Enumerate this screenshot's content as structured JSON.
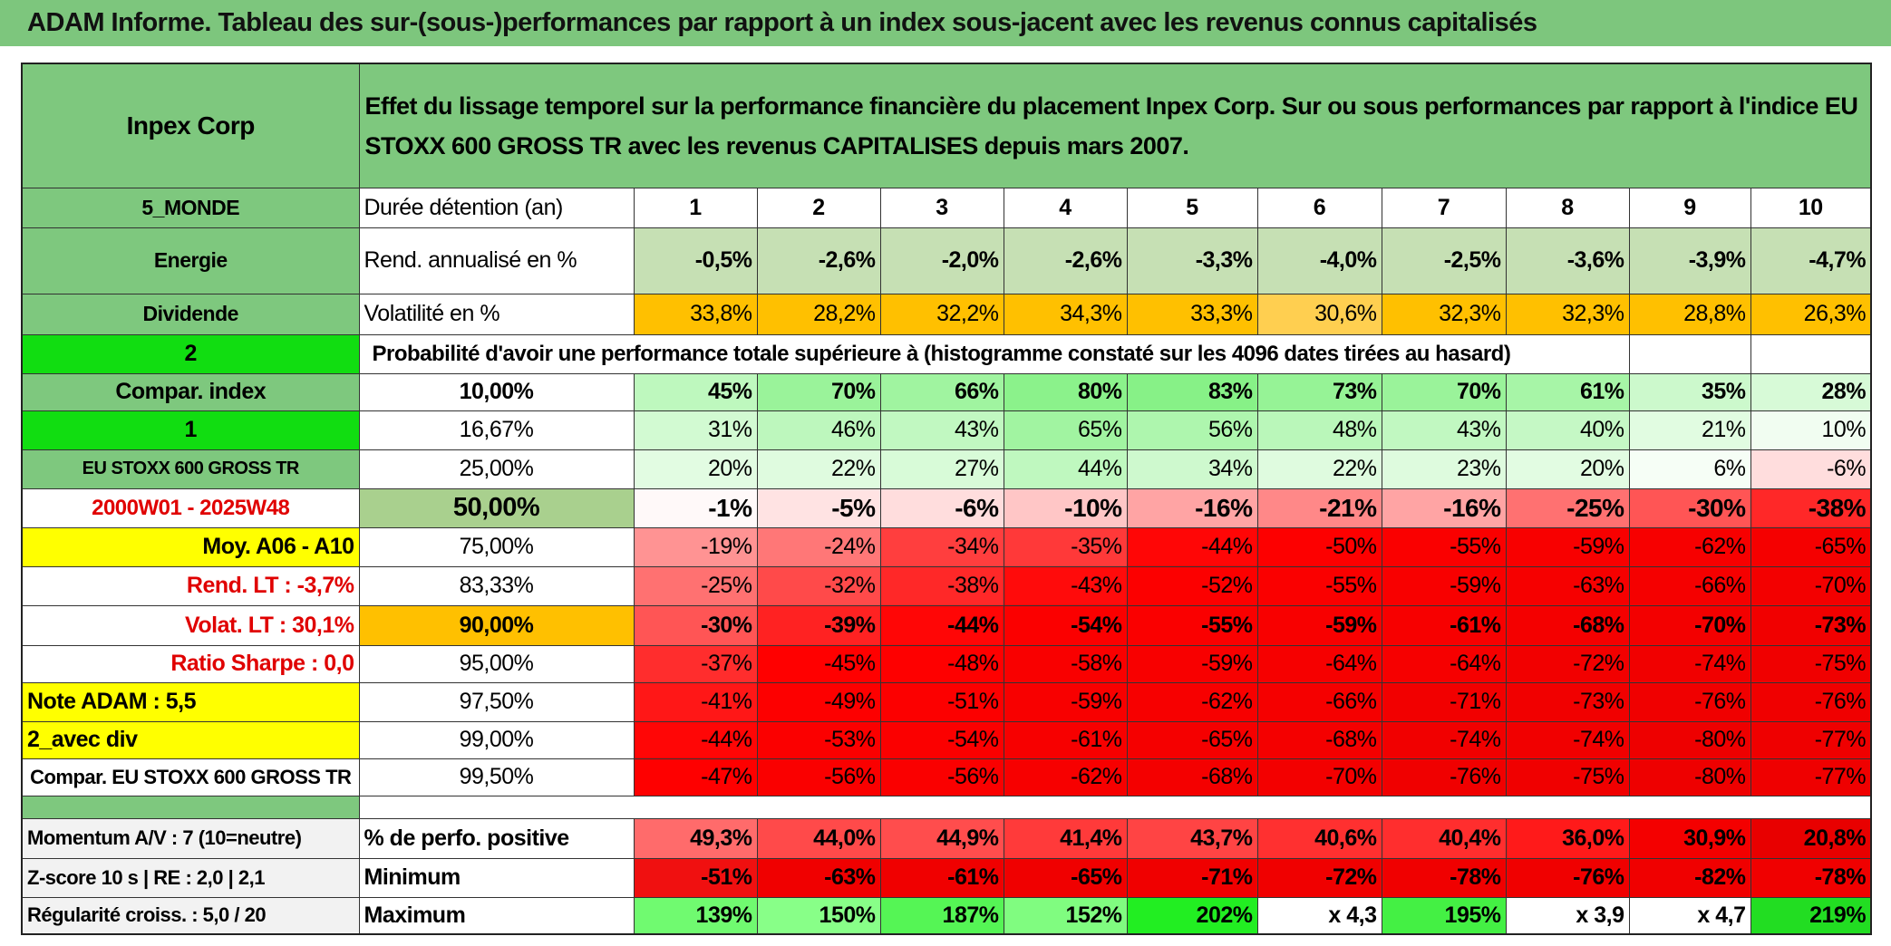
{
  "title": "ADAM Informe. Tableau des sur-(sous-)performances par rapport à un index sous-jacent avec les revenus connus capitalisés",
  "header": {
    "company": "Inpex Corp",
    "description": "Effet du lissage temporel sur la performance financière du placement Inpex Corp. Sur ou sous performances par rapport à l'indice EU STOXX 600 GROSS TR avec les revenus CAPITALISES depuis mars 2007."
  },
  "info_rows": [
    {
      "label": "5_MONDE",
      "name": "Durée détention (an)",
      "values": [
        "1",
        "2",
        "3",
        "4",
        "5",
        "6",
        "7",
        "8",
        "9",
        "10"
      ]
    },
    {
      "label": "Energie",
      "name": "Rend. annualisé en %",
      "values": [
        "-0,5%",
        "-2,6%",
        "-2,0%",
        "-2,6%",
        "-3,3%",
        "-4,0%",
        "-2,5%",
        "-3,6%",
        "-3,9%",
        "-4,7%"
      ]
    },
    {
      "label": "Dividende",
      "name": "Volatilité en %",
      "values": [
        "33,8%",
        "28,2%",
        "32,2%",
        "34,3%",
        "33,3%",
        "30,6%",
        "32,3%",
        "32,3%",
        "28,8%",
        "26,3%"
      ]
    }
  ],
  "probability": {
    "label": "2",
    "caption": "Probabilité d'avoir une performance totale supérieure à (histogramme constaté sur les 4096 dates tirées au hasard)"
  },
  "quantile_rows": [
    {
      "label": "Compar. index",
      "quantile": "10,00%",
      "values": [
        "45%",
        "70%",
        "66%",
        "80%",
        "83%",
        "73%",
        "70%",
        "61%",
        "35%",
        "28%"
      ]
    },
    {
      "label": "1",
      "quantile": "16,67%",
      "values": [
        "31%",
        "46%",
        "43%",
        "65%",
        "56%",
        "48%",
        "43%",
        "40%",
        "21%",
        "10%"
      ]
    },
    {
      "label": "EU STOXX 600 GROSS TR",
      "quantile": "25,00%",
      "values": [
        "20%",
        "22%",
        "27%",
        "44%",
        "34%",
        "22%",
        "23%",
        "20%",
        "6%",
        "-6%"
      ]
    },
    {
      "label": "2000W01 - 2025W48",
      "quantile": "50,00%",
      "values": [
        "-1%",
        "-5%",
        "-6%",
        "-10%",
        "-16%",
        "-21%",
        "-16%",
        "-25%",
        "-30%",
        "-38%"
      ]
    },
    {
      "label": "Moy. A06 - A10",
      "quantile": "75,00%",
      "values": [
        "-19%",
        "-24%",
        "-34%",
        "-35%",
        "-44%",
        "-50%",
        "-55%",
        "-59%",
        "-62%",
        "-65%"
      ]
    },
    {
      "label": "Rend. LT :   -3,7%",
      "quantile": "83,33%",
      "values": [
        "-25%",
        "-32%",
        "-38%",
        "-43%",
        "-52%",
        "-55%",
        "-59%",
        "-63%",
        "-66%",
        "-70%"
      ]
    },
    {
      "label": "Volat. LT :   30,1%",
      "quantile": "90,00%",
      "values": [
        "-30%",
        "-39%",
        "-44%",
        "-54%",
        "-55%",
        "-59%",
        "-61%",
        "-68%",
        "-70%",
        "-73%"
      ]
    },
    {
      "label": "Ratio Sharpe :    0,0",
      "quantile": "95,00%",
      "values": [
        "-37%",
        "-45%",
        "-48%",
        "-58%",
        "-59%",
        "-64%",
        "-64%",
        "-72%",
        "-74%",
        "-75%"
      ]
    },
    {
      "label": "Note ADAM : 5,5",
      "quantile": "97,50%",
      "values": [
        "-41%",
        "-49%",
        "-51%",
        "-59%",
        "-62%",
        "-66%",
        "-71%",
        "-73%",
        "-76%",
        "-76%"
      ]
    },
    {
      "label": "2_avec div",
      "quantile": "99,00%",
      "values": [
        "-44%",
        "-53%",
        "-54%",
        "-61%",
        "-65%",
        "-68%",
        "-74%",
        "-74%",
        "-80%",
        "-77%"
      ]
    },
    {
      "label": "Compar. EU STOXX 600 GROSS TR",
      "quantile": "99,50%",
      "values": [
        "-47%",
        "-56%",
        "-56%",
        "-62%",
        "-68%",
        "-70%",
        "-76%",
        "-75%",
        "-80%",
        "-77%"
      ]
    }
  ],
  "stats_rows": [
    {
      "label": "Momentum A/V : 7 (10=neutre)",
      "name": "% de perfo. positive",
      "values": [
        "49,3%",
        "44,0%",
        "44,9%",
        "41,4%",
        "43,7%",
        "40,6%",
        "40,4%",
        "36,0%",
        "30,9%",
        "20,8%"
      ]
    },
    {
      "label": "Z-score 10 s | RE : 2,0 | 2,1",
      "name": "Minimum",
      "values": [
        "-51%",
        "-63%",
        "-61%",
        "-65%",
        "-71%",
        "-72%",
        "-78%",
        "-76%",
        "-82%",
        "-78%"
      ]
    },
    {
      "label": "Régularité croiss. : 5,0 / 20",
      "name": "Maximum",
      "values": [
        "139%",
        "150%",
        "187%",
        "152%",
        "202%",
        "x 4,3",
        "195%",
        "x 3,9",
        "x 4,7",
        "219%"
      ]
    }
  ]
}
